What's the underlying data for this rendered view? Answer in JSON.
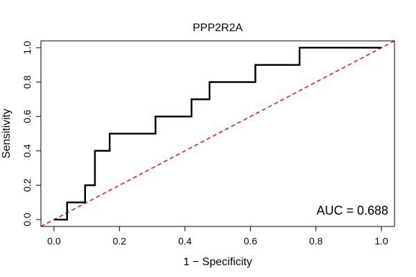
{
  "chart_data": {
    "type": "line",
    "title": "PPP2R2A",
    "xlabel": "1 − Specificity",
    "ylabel": "Sensitivity",
    "xlim": [
      -0.04,
      1.04
    ],
    "ylim": [
      -0.04,
      1.04
    ],
    "x_ticks": [
      0.0,
      0.2,
      0.4,
      0.6,
      0.8,
      1.0
    ],
    "x_tick_labels": [
      "0.0",
      "0.2",
      "0.4",
      "0.6",
      "0.8",
      "1.0"
    ],
    "y_ticks": [
      0.0,
      0.2,
      0.4,
      0.6,
      0.8,
      1.0
    ],
    "y_tick_labels": [
      "0.0",
      "0.2",
      "0.4",
      "0.6",
      "0.8",
      "1.0"
    ],
    "grid": false,
    "annotation": "AUC = 0.688",
    "series": [
      {
        "color": "#000000",
        "style": "solid",
        "x": [
          0.0,
          0.04,
          0.04,
          0.095,
          0.095,
          0.125,
          0.125,
          0.17,
          0.17,
          0.31,
          0.31,
          0.42,
          0.42,
          0.475,
          0.475,
          0.615,
          0.615,
          0.75,
          0.75,
          1.0
        ],
        "y": [
          0.0,
          0.0,
          0.1,
          0.1,
          0.2,
          0.2,
          0.4,
          0.4,
          0.5,
          0.5,
          0.6,
          0.6,
          0.7,
          0.7,
          0.8,
          0.8,
          0.9,
          0.9,
          1.0,
          1.0
        ]
      },
      {
        "color": "#e8111a",
        "style": "dashed",
        "x": [
          -0.04,
          1.04
        ],
        "y": [
          -0.04,
          1.04
        ]
      }
    ]
  }
}
